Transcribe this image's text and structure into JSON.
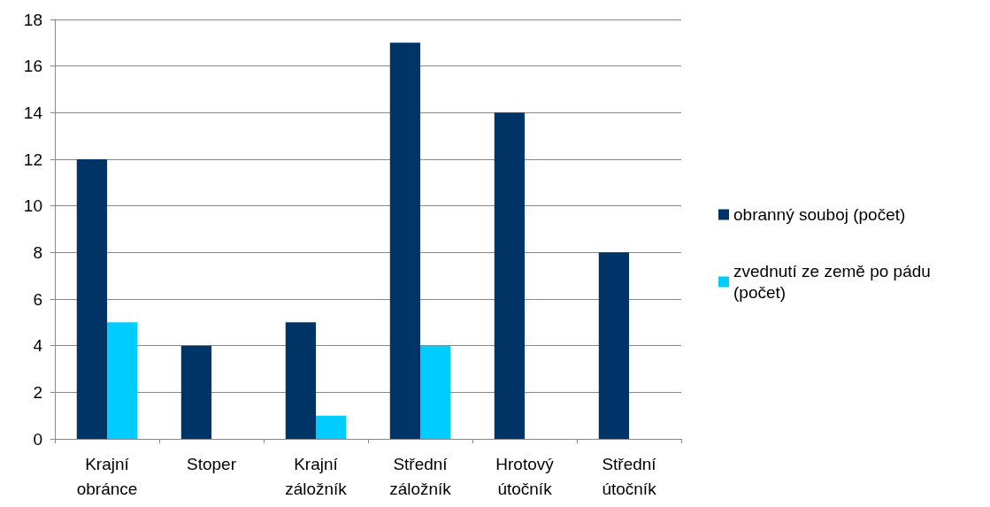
{
  "chart_data": {
    "type": "bar",
    "categories": [
      "Krajní obránce",
      "Stoper",
      "Krajní záložník",
      "Střední záložník",
      "Hrotový útočník",
      "Střední útočník"
    ],
    "series": [
      {
        "name": "obranný souboj (počet)",
        "color": "#003366",
        "values": [
          12,
          4,
          5,
          17,
          14,
          8
        ]
      },
      {
        "name": "zvednutí ze země po pádu (počet)",
        "color": "#00ccff",
        "values": [
          5,
          0,
          1,
          4,
          0,
          0
        ]
      }
    ],
    "ylim": [
      0,
      18
    ],
    "yticks": [
      0,
      2,
      4,
      6,
      8,
      10,
      12,
      14,
      16,
      18
    ],
    "grid": "y",
    "legend": "right"
  }
}
